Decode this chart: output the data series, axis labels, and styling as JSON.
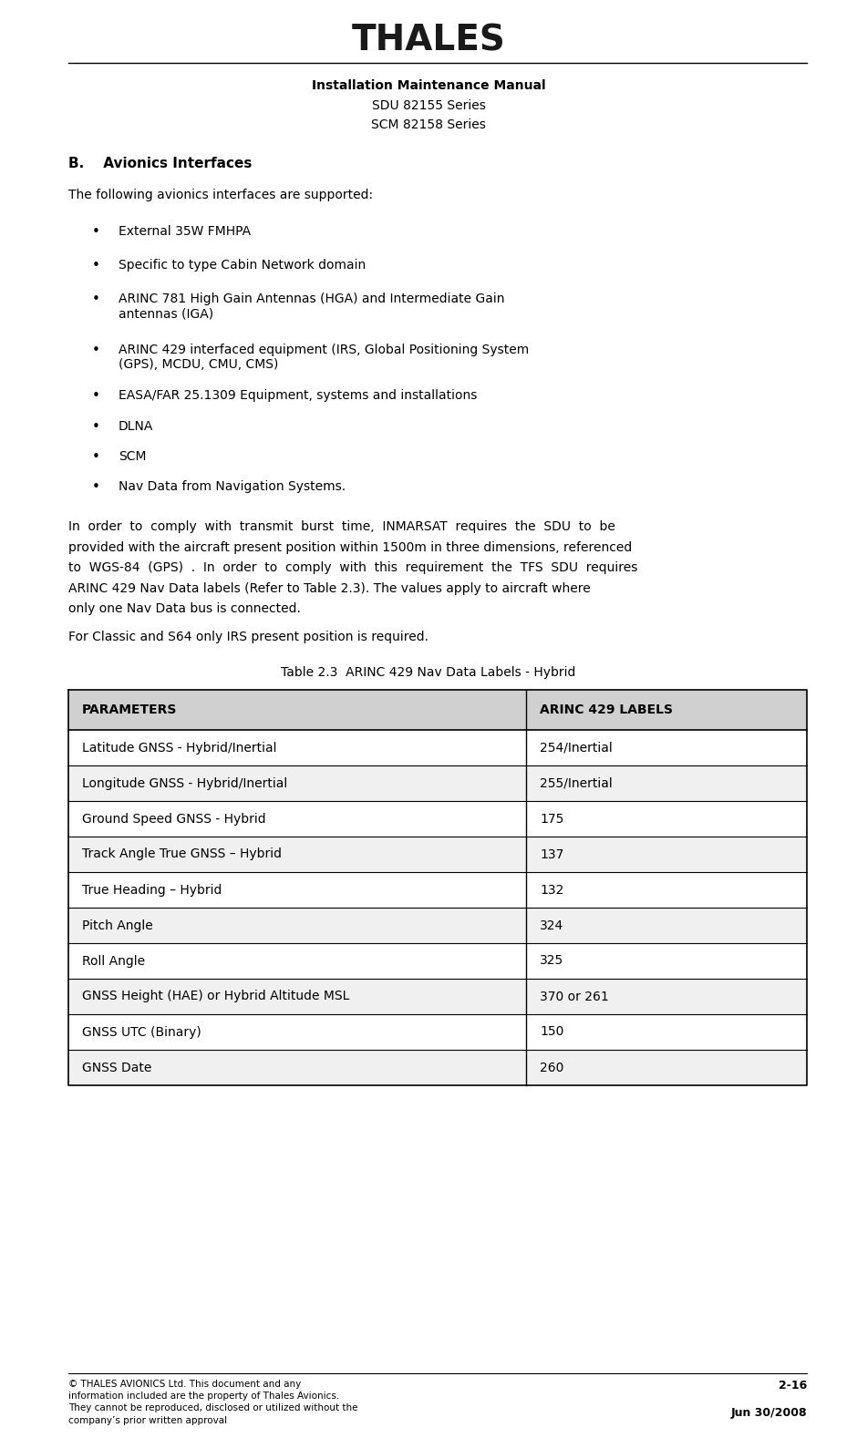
{
  "page_width": 9.4,
  "page_height": 15.89,
  "bg_color": "#ffffff",
  "logo_text": "THALES",
  "header_line1": "Installation Maintenance Manual",
  "header_line2": "SDU 82155 Series",
  "header_line3": "SCM 82158 Series",
  "section_title": "B.    Avionics Interfaces",
  "intro_text": "The following avionics interfaces are supported:",
  "bullets": [
    "External 35W FMHPA",
    "Specific to type Cabin Network domain",
    "ARINC 781 High Gain Antennas (HGA) and Intermediate Gain\nantennas (IGA)",
    "ARINC 429 interfaced equipment (IRS, Global Positioning System\n(GPS), MCDU, CMU, CMS)",
    "EASA/FAR 25.1309 Equipment, systems and installations",
    "DLNA",
    "SCM",
    "Nav Data from Navigation Systems."
  ],
  "body_paragraph1": "In  order  to  comply  with  transmit  burst  time,  INMARSAT  requires  the  SDU  to  be\nprovided with the aircraft present position within 1500m in three dimensions, referenced\nto  WGS-84  (GPS)  .  In  order  to  comply  with  this  requirement  the  TFS  SDU  requires\nARINC 429 Nav Data labels (Refer to Table 2.3). The values apply to aircraft where\nonly one Nav Data bus is connected.",
  "body_paragraph2": "For Classic and S64 only IRS present position is required.",
  "table_title": "Table 2.3  ARINC 429 Nav Data Labels - Hybrid",
  "table_headers": [
    "PARAMETERS",
    "ARINC 429 LABELS"
  ],
  "table_rows": [
    [
      "Latitude GNSS - Hybrid/Inertial",
      "254/Inertial"
    ],
    [
      "Longitude GNSS - Hybrid/Inertial",
      "255/Inertial"
    ],
    [
      "Ground Speed GNSS - Hybrid",
      "175"
    ],
    [
      "Track Angle True GNSS – Hybrid",
      "137"
    ],
    [
      "True Heading – Hybrid",
      "132"
    ],
    [
      "Pitch Angle",
      "324"
    ],
    [
      "Roll Angle",
      "325"
    ],
    [
      "GNSS Height (HAE) or Hybrid Altitude MSL",
      "370 or 261"
    ],
    [
      "GNSS UTC (Binary)",
      "150"
    ],
    [
      "GNSS Date",
      "260"
    ]
  ],
  "footer_left": "© THALES AVIONICS Ltd. This document and any\ninformation included are the property of Thales Avionics.\nThey cannot be reproduced, disclosed or utilized without the\ncompany’s prior written approval",
  "footer_right_line1": "2-16",
  "footer_right_line2": "Jun 30/2008"
}
